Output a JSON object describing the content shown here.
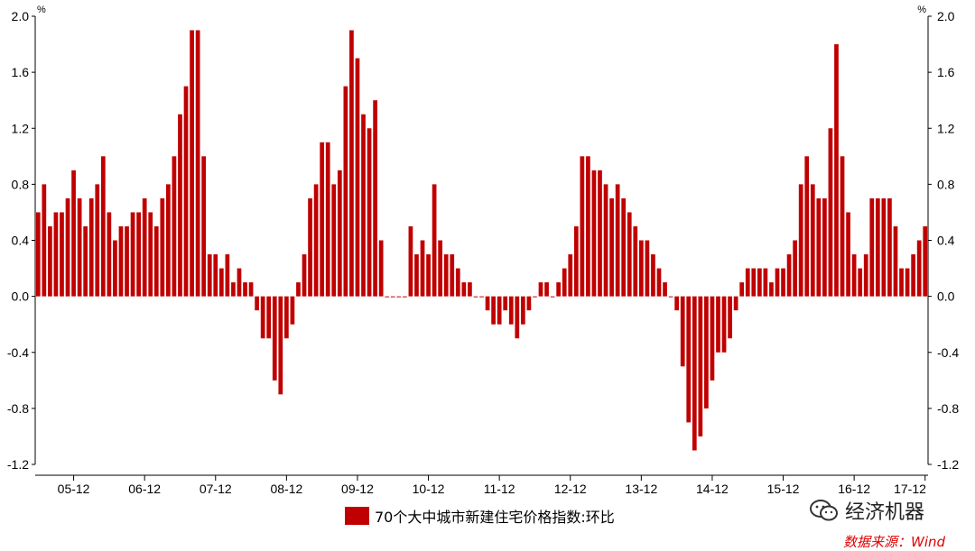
{
  "chart_data": {
    "type": "bar",
    "y_unit_left": "%",
    "y_unit_right": "%",
    "ylim": [
      -1.2,
      2.0
    ],
    "y_ticks": [
      "2.0",
      "1.6",
      "1.2",
      "0.8",
      "0.4",
      "0.0",
      "-0.4",
      "-0.8",
      "-1.2"
    ],
    "x_tick_labels": [
      "05-12",
      "06-12",
      "07-12",
      "08-12",
      "09-12",
      "10-12",
      "11-12",
      "12-12",
      "13-12",
      "14-12",
      "15-12",
      "16-12",
      "17-12"
    ],
    "series": [
      {
        "name": "70个大中城市新建住宅价格指数:环比",
        "color": "#c00000",
        "values": [
          0.6,
          0.8,
          0.5,
          0.6,
          0.6,
          0.7,
          0.9,
          0.7,
          0.5,
          0.7,
          0.8,
          1.0,
          0.6,
          0.4,
          0.5,
          0.5,
          0.6,
          0.6,
          0.7,
          0.6,
          0.5,
          0.7,
          0.8,
          1.0,
          1.3,
          1.5,
          1.9,
          1.9,
          1.0,
          0.3,
          0.3,
          0.2,
          0.3,
          0.1,
          0.2,
          0.1,
          0.1,
          -0.1,
          -0.3,
          -0.3,
          -0.6,
          -0.7,
          -0.3,
          -0.2,
          0.1,
          0.3,
          0.7,
          0.8,
          1.1,
          1.1,
          0.8,
          0.9,
          1.5,
          1.9,
          1.7,
          1.3,
          1.2,
          1.4,
          0.4,
          0.0,
          0.0,
          0.0,
          0.0,
          0.5,
          0.3,
          0.4,
          0.3,
          0.8,
          0.4,
          0.3,
          0.3,
          0.2,
          0.1,
          0.1,
          0.0,
          0.0,
          -0.1,
          -0.2,
          -0.2,
          -0.1,
          -0.2,
          -0.3,
          -0.2,
          -0.1,
          0.0,
          0.1,
          0.1,
          0.0,
          0.1,
          0.2,
          0.3,
          0.5,
          1.0,
          1.0,
          0.9,
          0.9,
          0.8,
          0.7,
          0.8,
          0.7,
          0.6,
          0.5,
          0.4,
          0.4,
          0.3,
          0.2,
          0.1,
          0.0,
          -0.1,
          -0.5,
          -0.9,
          -1.1,
          -1.0,
          -0.8,
          -0.6,
          -0.4,
          -0.4,
          -0.3,
          -0.1,
          0.1,
          0.2,
          0.2,
          0.2,
          0.2,
          0.1,
          0.2,
          0.2,
          0.3,
          0.4,
          0.8,
          1.0,
          0.8,
          0.7,
          0.7,
          1.2,
          1.8,
          1.0,
          0.6,
          0.3,
          0.2,
          0.3,
          0.7,
          0.7,
          0.7,
          0.7,
          0.5,
          0.2,
          0.2,
          0.3,
          0.4,
          0.5
        ]
      }
    ],
    "legend_position": "bottom-center",
    "grid": false
  },
  "watermark": {
    "icon": "wechat-icon",
    "text": "经济机器"
  },
  "source": "数据来源：Wind"
}
